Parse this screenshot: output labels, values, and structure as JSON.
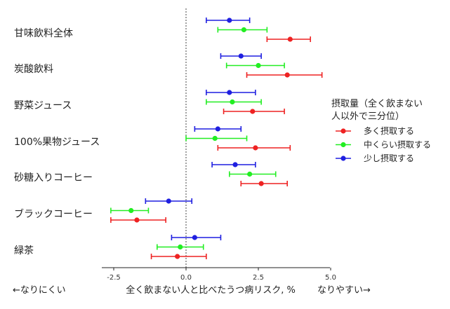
{
  "chart_data": {
    "type": "forest",
    "xlim": [
      -3,
      5
    ],
    "xticks": [
      -2.5,
      0,
      2.5,
      5
    ],
    "tick_labels": [
      "-2.5",
      "0.0",
      "2.5",
      "5.0"
    ],
    "zero_reference": 0,
    "categories": [
      "甘味飲料全体",
      "炭酸飲料",
      "野菜ジュース",
      "100%果物ジュース",
      "砂糖入りコーヒー",
      "ブラックコーヒー",
      "緑茶"
    ],
    "xlabel": "全く飲まない人と比べたうつ病リスク, %",
    "left_note": "←なりにくい",
    "right_note": "なりやすい→",
    "legend": {
      "title_line1": "摂取量（全く飲まない",
      "title_line2": "人以外で三分位）",
      "placement": "right"
    },
    "series": [
      {
        "name": "少し摂取する",
        "color": "#1f1fe0",
        "estimate": [
          1.5,
          1.9,
          1.5,
          1.1,
          1.7,
          -0.6,
          0.3
        ],
        "lower": [
          0.7,
          1.2,
          0.7,
          0.3,
          0.9,
          -1.4,
          -0.5
        ],
        "upper": [
          2.2,
          2.6,
          2.4,
          1.9,
          2.4,
          0.2,
          1.2
        ]
      },
      {
        "name": "中くらい摂取する",
        "color": "#22ee22",
        "estimate": [
          2.0,
          2.5,
          1.6,
          1.0,
          2.2,
          -1.9,
          -0.2
        ],
        "lower": [
          1.1,
          1.4,
          0.7,
          0.0,
          1.5,
          -2.6,
          -1.0
        ],
        "upper": [
          2.8,
          3.4,
          2.6,
          2.1,
          3.1,
          -1.3,
          0.6
        ]
      },
      {
        "name": "多く摂取する",
        "color": "#ee2222",
        "estimate": [
          3.6,
          3.5,
          2.3,
          2.4,
          2.6,
          -1.7,
          -0.3
        ],
        "lower": [
          2.8,
          2.1,
          1.3,
          1.1,
          1.9,
          -2.6,
          -1.2
        ],
        "upper": [
          4.3,
          4.7,
          3.4,
          3.6,
          3.5,
          -0.7,
          0.7
        ]
      }
    ]
  }
}
